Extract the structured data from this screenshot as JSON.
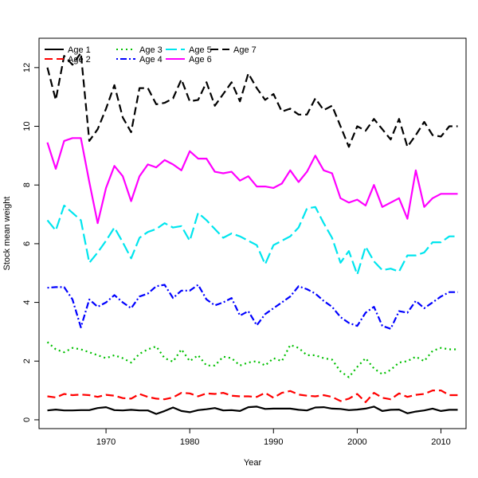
{
  "chart_data": {
    "type": "line",
    "xlabel": "Year",
    "ylabel": "Stock mean weight",
    "xlim": [
      1962,
      2013
    ],
    "ylim": [
      -0.3,
      13.0
    ],
    "xticks": [
      1970,
      1980,
      1990,
      2000,
      2010
    ],
    "yticks": [
      0,
      2,
      4,
      6,
      8,
      10,
      12
    ],
    "x": [
      1963,
      1964,
      1965,
      1966,
      1967,
      1968,
      1969,
      1970,
      1971,
      1972,
      1973,
      1974,
      1975,
      1976,
      1977,
      1978,
      1979,
      1980,
      1981,
      1982,
      1983,
      1984,
      1985,
      1986,
      1987,
      1988,
      1989,
      1990,
      1991,
      1992,
      1993,
      1994,
      1995,
      1996,
      1997,
      1998,
      1999,
      2000,
      2001,
      2002,
      2003,
      2004,
      2005,
      2006,
      2007,
      2008,
      2009,
      2010,
      2011,
      2012
    ],
    "legend_position": "top-left",
    "series": [
      {
        "name": "Age 1",
        "color": "#000000",
        "dash": "solid",
        "values": [
          0.32,
          0.35,
          0.32,
          0.32,
          0.33,
          0.33,
          0.4,
          0.43,
          0.33,
          0.32,
          0.34,
          0.32,
          0.32,
          0.2,
          0.3,
          0.42,
          0.3,
          0.26,
          0.33,
          0.36,
          0.4,
          0.32,
          0.33,
          0.3,
          0.43,
          0.45,
          0.37,
          0.38,
          0.38,
          0.38,
          0.34,
          0.32,
          0.42,
          0.43,
          0.38,
          0.37,
          0.33,
          0.35,
          0.38,
          0.45,
          0.3,
          0.34,
          0.35,
          0.22,
          0.28,
          0.32,
          0.38,
          0.3,
          0.34,
          0.34
        ]
      },
      {
        "name": "Age 2",
        "color": "#ff0000",
        "dash": "dashed",
        "values": [
          0.8,
          0.76,
          0.88,
          0.84,
          0.86,
          0.84,
          0.78,
          0.85,
          0.82,
          0.74,
          0.72,
          0.88,
          0.78,
          0.72,
          0.7,
          0.76,
          0.92,
          0.9,
          0.8,
          0.9,
          0.88,
          0.92,
          0.82,
          0.8,
          0.8,
          0.78,
          0.92,
          0.75,
          0.92,
          0.98,
          0.86,
          0.82,
          0.8,
          0.84,
          0.78,
          0.64,
          0.72,
          0.88,
          0.6,
          0.92,
          0.75,
          0.7,
          0.9,
          0.78,
          0.85,
          0.88,
          1.0,
          1.0,
          0.84,
          0.84
        ]
      },
      {
        "name": "Age 3",
        "color": "#00c000",
        "dash": "dotted",
        "values": [
          2.65,
          2.4,
          2.3,
          2.45,
          2.4,
          2.3,
          2.2,
          2.1,
          2.2,
          2.1,
          1.95,
          2.25,
          2.4,
          2.5,
          2.1,
          1.98,
          2.4,
          2.0,
          2.2,
          1.85,
          1.85,
          2.15,
          2.1,
          1.85,
          1.95,
          2.0,
          1.85,
          2.1,
          2.0,
          2.55,
          2.45,
          2.2,
          2.2,
          2.1,
          2.05,
          1.65,
          1.45,
          1.8,
          2.1,
          1.75,
          1.55,
          1.7,
          1.95,
          2.0,
          2.15,
          2.0,
          2.35,
          2.45,
          2.4,
          2.4
        ]
      },
      {
        "name": "Age 4",
        "color": "#0000ff",
        "dash": "dot-dash",
        "values": [
          4.5,
          4.52,
          4.52,
          4.1,
          3.15,
          4.1,
          3.85,
          4.0,
          4.25,
          4.0,
          3.8,
          4.2,
          4.3,
          4.55,
          4.6,
          4.15,
          4.4,
          4.4,
          4.6,
          4.1,
          3.9,
          4.0,
          4.15,
          3.55,
          3.7,
          3.22,
          3.6,
          3.8,
          4.0,
          4.2,
          4.55,
          4.45,
          4.3,
          4.05,
          3.85,
          3.5,
          3.3,
          3.2,
          3.65,
          3.85,
          3.2,
          3.1,
          3.7,
          3.65,
          4.05,
          3.8,
          4.0,
          4.2,
          4.35,
          4.35
        ]
      },
      {
        "name": "Age 5",
        "color": "#00e5ee",
        "dash": "long-dash",
        "values": [
          6.8,
          6.45,
          7.3,
          7.05,
          6.8,
          5.35,
          5.7,
          6.1,
          6.55,
          6.05,
          5.5,
          6.2,
          6.4,
          6.5,
          6.7,
          6.55,
          6.6,
          6.1,
          7.05,
          6.8,
          6.5,
          6.2,
          6.35,
          6.25,
          6.1,
          5.95,
          5.3,
          5.95,
          6.1,
          6.25,
          6.55,
          7.2,
          7.25,
          6.7,
          6.2,
          5.35,
          5.75,
          4.95,
          5.9,
          5.4,
          5.1,
          5.15,
          5.05,
          5.6,
          5.6,
          5.7,
          6.05,
          6.05,
          6.25,
          6.25
        ]
      },
      {
        "name": "Age 6",
        "color": "#ff00ff",
        "dash": "solid",
        "values": [
          9.45,
          8.55,
          9.5,
          9.6,
          9.6,
          8.1,
          6.7,
          7.9,
          8.65,
          8.3,
          7.45,
          8.3,
          8.7,
          8.6,
          8.85,
          8.7,
          8.5,
          9.15,
          8.9,
          8.9,
          8.45,
          8.4,
          8.45,
          8.15,
          8.3,
          7.95,
          7.95,
          7.9,
          8.05,
          8.5,
          8.1,
          8.45,
          9.0,
          8.5,
          8.4,
          7.55,
          7.4,
          7.5,
          7.3,
          8.0,
          7.25,
          7.4,
          7.55,
          6.85,
          8.5,
          7.25,
          7.55,
          7.7,
          7.7,
          7.7
        ]
      },
      {
        "name": "Age 7",
        "color": "#000000",
        "dash": "dashed",
        "values": [
          12.0,
          10.9,
          12.4,
          12.1,
          12.5,
          9.5,
          9.9,
          10.6,
          11.4,
          10.3,
          9.8,
          11.3,
          11.3,
          10.75,
          10.8,
          10.95,
          11.6,
          10.85,
          10.9,
          11.5,
          10.7,
          11.1,
          11.5,
          10.85,
          11.8,
          11.3,
          10.9,
          11.1,
          10.5,
          10.6,
          10.4,
          10.4,
          10.95,
          10.55,
          10.7,
          10.0,
          9.3,
          10.0,
          9.85,
          10.25,
          9.9,
          9.55,
          10.25,
          9.3,
          9.7,
          10.15,
          9.7,
          9.65,
          10.0,
          10.0
        ]
      }
    ]
  }
}
